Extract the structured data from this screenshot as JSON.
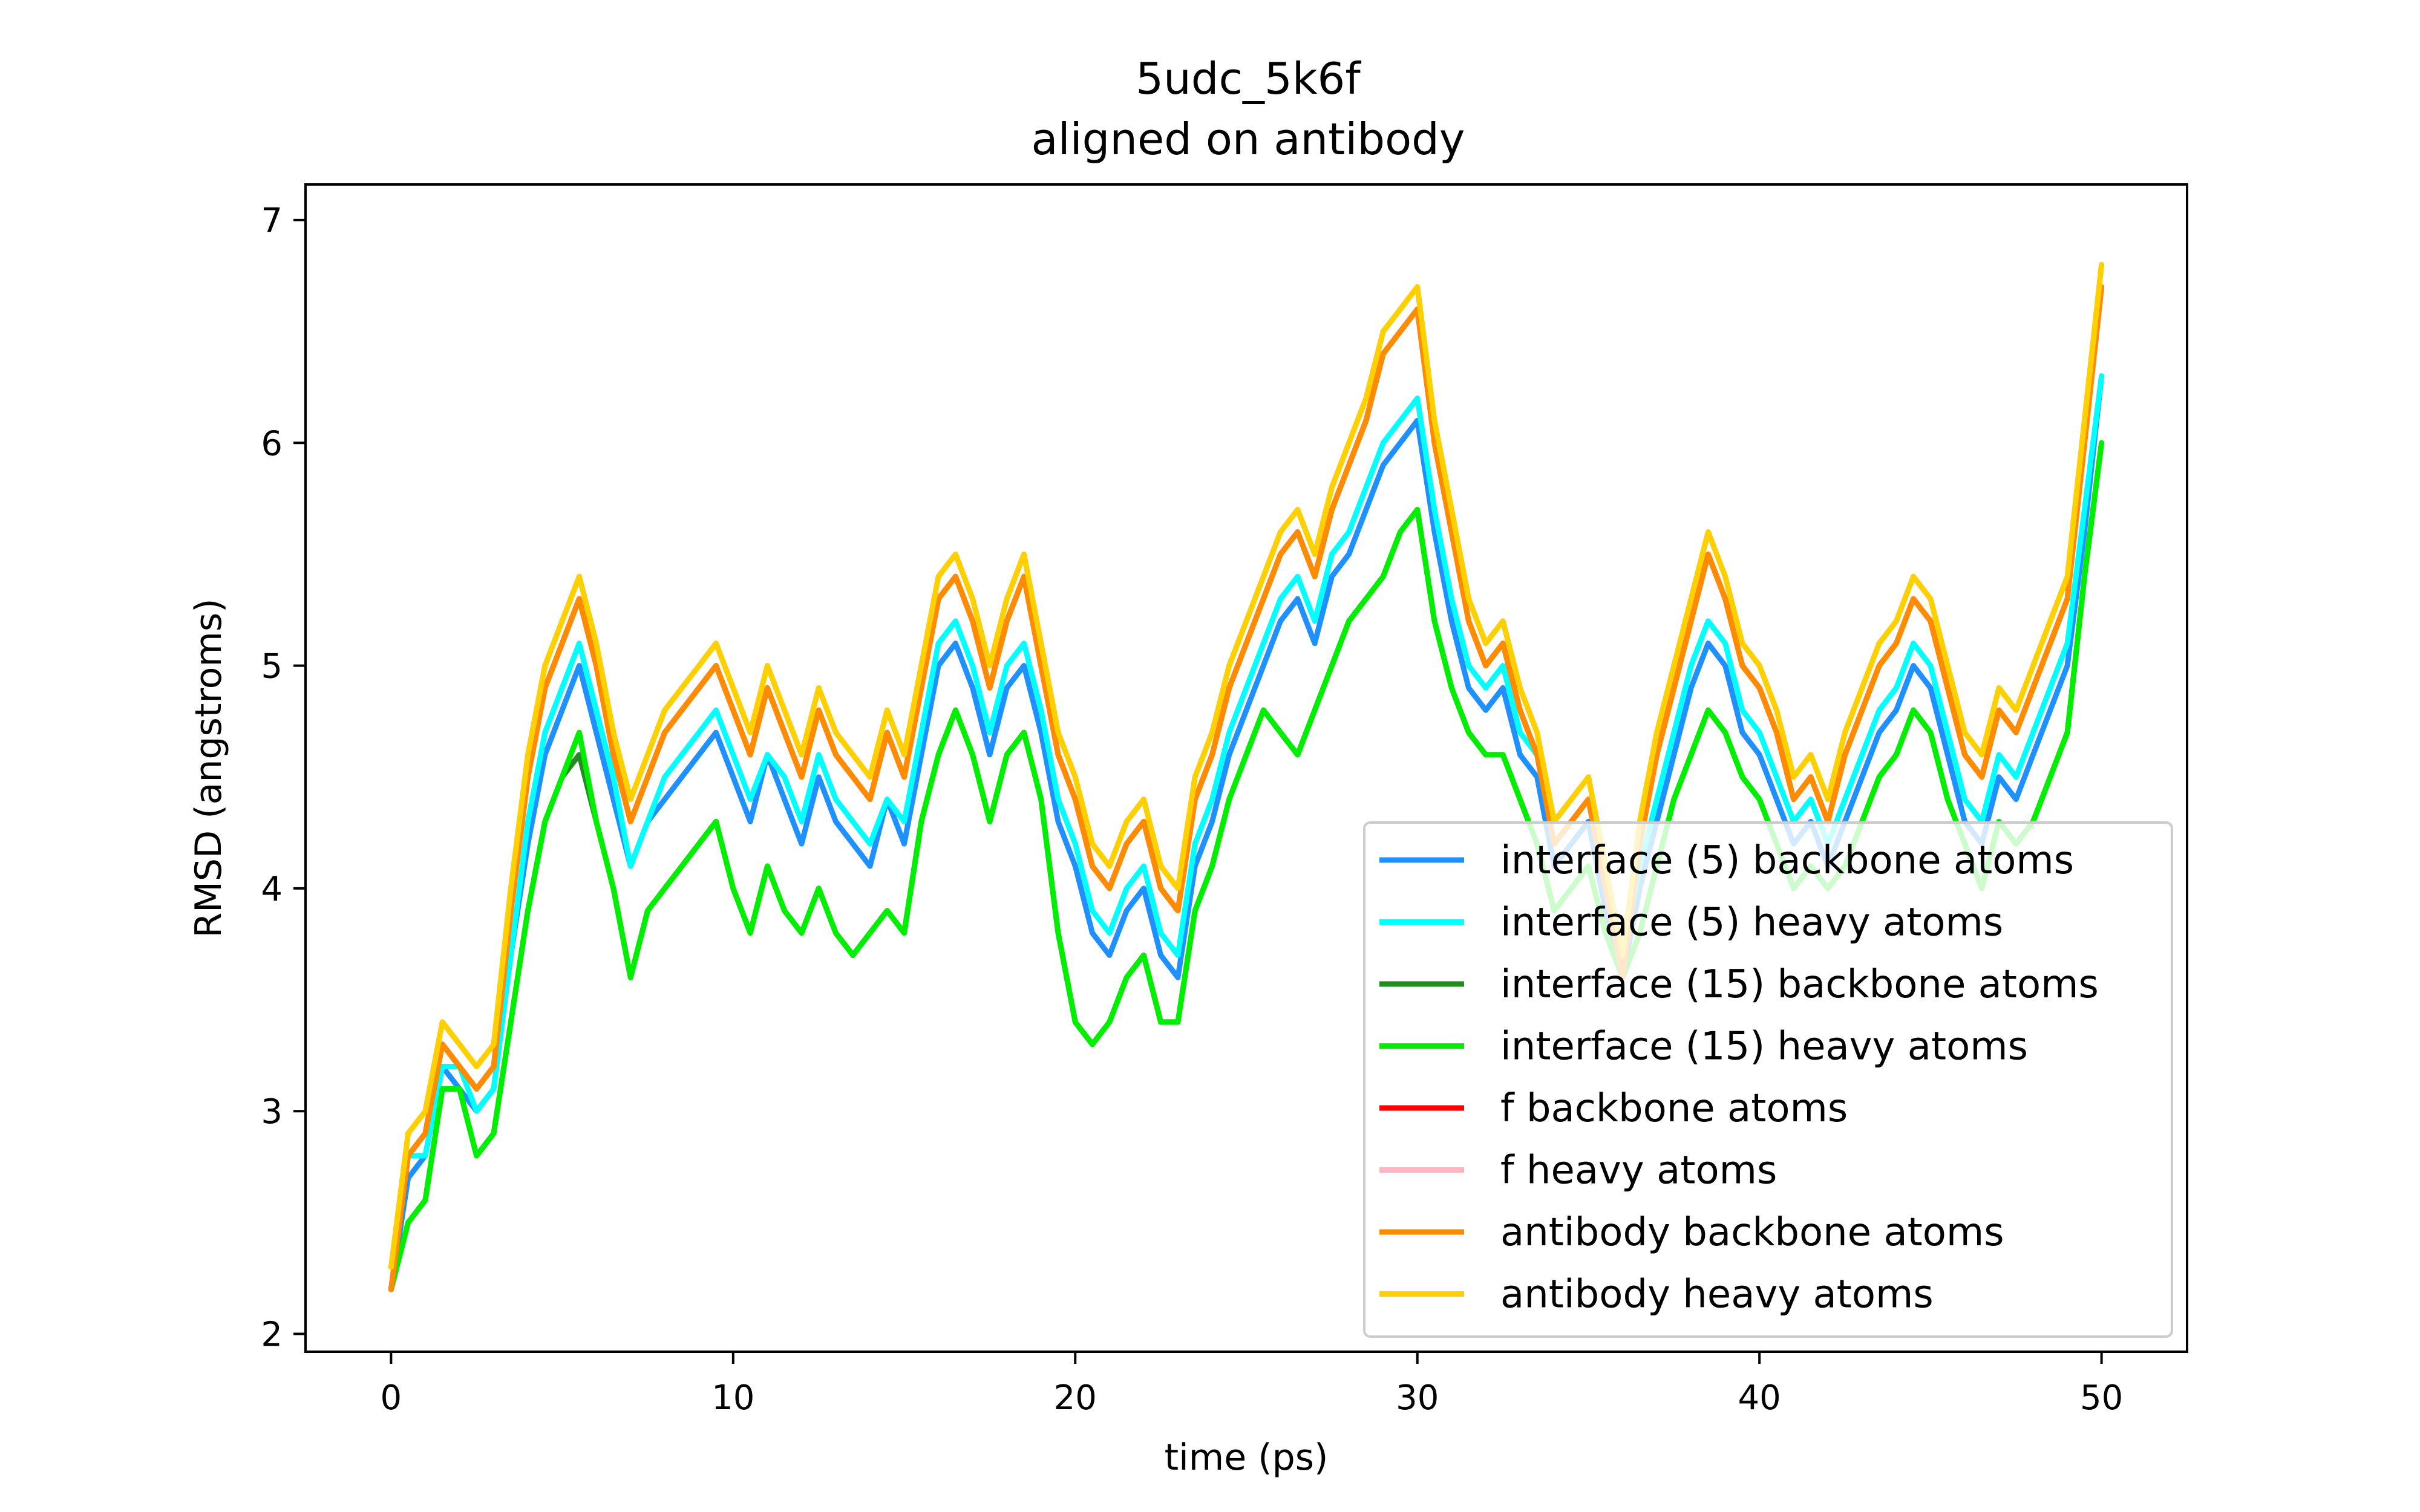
{
  "chart_data": {
    "type": "line",
    "title": "5udc_5k6f",
    "subtitle": "aligned on antibody",
    "xlabel": "time (ps)",
    "ylabel": "RMSD (angstroms)",
    "xlim": [
      -2.5,
      52.5
    ],
    "ylim": [
      1.92,
      7.16
    ],
    "xticks": [
      0,
      10,
      20,
      30,
      40,
      50
    ],
    "yticks": [
      2,
      3,
      4,
      5,
      6,
      7
    ],
    "grid": false,
    "legend_position": "lower right",
    "x": [
      0,
      0.5,
      1,
      1.5,
      2,
      2.5,
      3,
      3.5,
      4,
      4.5,
      5,
      5.5,
      6,
      6.5,
      7,
      7.5,
      8,
      8.5,
      9,
      9.5,
      10,
      10.5,
      11,
      11.5,
      12,
      12.5,
      13,
      13.5,
      14,
      14.5,
      15,
      15.5,
      16,
      16.5,
      17,
      17.5,
      18,
      18.5,
      19,
      19.5,
      20,
      20.5,
      21,
      21.5,
      22,
      22.5,
      23,
      23.5,
      24,
      24.5,
      25,
      25.5,
      26,
      26.5,
      27,
      27.5,
      28,
      28.5,
      29,
      29.5,
      30,
      30.5,
      31,
      31.5,
      32,
      32.5,
      33,
      33.5,
      34,
      34.5,
      35,
      35.5,
      36,
      36.5,
      37,
      37.5,
      38,
      38.5,
      39,
      39.5,
      40,
      40.5,
      41,
      41.5,
      42,
      42.5,
      43,
      43.5,
      44,
      44.5,
      45,
      45.5,
      46,
      46.5,
      47,
      47.5,
      48,
      48.5,
      49,
      49.5,
      50
    ],
    "series": [
      {
        "name": "interface (5) backbone atoms",
        "color": "#1e90ff",
        "values": [
          2.2,
          2.7,
          2.8,
          3.2,
          3.1,
          3.0,
          3.1,
          3.7,
          4.2,
          4.6,
          4.8,
          5.0,
          4.7,
          4.4,
          4.1,
          4.3,
          4.4,
          4.5,
          4.6,
          4.7,
          4.5,
          4.3,
          4.6,
          4.4,
          4.2,
          4.5,
          4.3,
          4.2,
          4.1,
          4.4,
          4.2,
          4.6,
          5.0,
          5.1,
          4.9,
          4.6,
          4.9,
          5.0,
          4.7,
          4.3,
          4.1,
          3.8,
          3.7,
          3.9,
          4.0,
          3.7,
          3.6,
          4.1,
          4.3,
          4.6,
          4.8,
          5.0,
          5.2,
          5.3,
          5.1,
          5.4,
          5.5,
          5.7,
          5.9,
          6.0,
          6.1,
          5.6,
          5.2,
          4.9,
          4.8,
          4.9,
          4.6,
          4.5,
          4.1,
          4.2,
          4.3,
          3.9,
          3.6,
          4.0,
          4.3,
          4.6,
          4.9,
          5.1,
          5.0,
          4.7,
          4.6,
          4.4,
          4.2,
          4.3,
          4.1,
          4.3,
          4.5,
          4.7,
          4.8,
          5.0,
          4.9,
          4.6,
          4.3,
          4.2,
          4.5,
          4.4,
          4.6,
          4.8,
          5.0,
          5.6,
          6.3
        ]
      },
      {
        "name": "interface (5) heavy atoms",
        "color": "#00ffff",
        "values": [
          2.3,
          2.8,
          2.8,
          3.2,
          3.2,
          3.0,
          3.1,
          3.7,
          4.3,
          4.7,
          4.9,
          5.1,
          4.8,
          4.5,
          4.1,
          4.3,
          4.5,
          4.6,
          4.7,
          4.8,
          4.6,
          4.4,
          4.6,
          4.5,
          4.3,
          4.6,
          4.4,
          4.3,
          4.2,
          4.4,
          4.3,
          4.7,
          5.1,
          5.2,
          5.0,
          4.7,
          5.0,
          5.1,
          4.8,
          4.4,
          4.2,
          3.9,
          3.8,
          4.0,
          4.1,
          3.8,
          3.7,
          4.2,
          4.4,
          4.7,
          4.9,
          5.1,
          5.3,
          5.4,
          5.2,
          5.5,
          5.6,
          5.8,
          6.0,
          6.1,
          6.2,
          5.7,
          5.3,
          5.0,
          4.9,
          5.0,
          4.7,
          4.6,
          4.2,
          4.3,
          4.4,
          4.0,
          3.7,
          4.1,
          4.4,
          4.7,
          5.0,
          5.2,
          5.1,
          4.8,
          4.7,
          4.5,
          4.3,
          4.4,
          4.2,
          4.4,
          4.6,
          4.8,
          4.9,
          5.1,
          5.0,
          4.7,
          4.4,
          4.3,
          4.6,
          4.5,
          4.7,
          4.9,
          5.1,
          5.7,
          6.3
        ]
      },
      {
        "name": "interface (15) backbone atoms",
        "color": "#228b22",
        "values": [
          2.2,
          2.5,
          2.6,
          3.1,
          3.1,
          2.8,
          2.9,
          3.4,
          3.9,
          4.3,
          4.5,
          4.6,
          4.3,
          4.0,
          3.6,
          3.9,
          4.0,
          4.1,
          4.2,
          4.3,
          4.0,
          3.8,
          4.1,
          3.9,
          3.8,
          4.0,
          3.8,
          3.7,
          3.8,
          3.9,
          3.8,
          4.3,
          4.6,
          4.8,
          4.6,
          4.3,
          4.6,
          4.7,
          4.4,
          3.8,
          3.4,
          3.3,
          3.4,
          3.6,
          3.7,
          3.4,
          3.4,
          3.9,
          4.1,
          4.4,
          4.6,
          4.8,
          4.7,
          4.6,
          4.8,
          5.0,
          5.2,
          5.3,
          5.4,
          5.6,
          5.7,
          5.2,
          4.9,
          4.7,
          4.6,
          4.6,
          4.4,
          4.2,
          3.9,
          4.0,
          4.1,
          3.8,
          3.6,
          3.8,
          4.1,
          4.4,
          4.6,
          4.8,
          4.7,
          4.5,
          4.4,
          4.2,
          4.0,
          4.1,
          4.0,
          4.1,
          4.3,
          4.5,
          4.6,
          4.8,
          4.7,
          4.4,
          4.2,
          4.0,
          4.3,
          4.2,
          4.3,
          4.5,
          4.7,
          5.4,
          6.0
        ]
      },
      {
        "name": "interface (15) heavy atoms",
        "color": "#00ee00",
        "values": [
          2.2,
          2.5,
          2.6,
          3.1,
          3.1,
          2.8,
          2.9,
          3.4,
          3.9,
          4.3,
          4.5,
          4.7,
          4.3,
          4.0,
          3.6,
          3.9,
          4.0,
          4.1,
          4.2,
          4.3,
          4.0,
          3.8,
          4.1,
          3.9,
          3.8,
          4.0,
          3.8,
          3.7,
          3.8,
          3.9,
          3.8,
          4.3,
          4.6,
          4.8,
          4.6,
          4.3,
          4.6,
          4.7,
          4.4,
          3.8,
          3.4,
          3.3,
          3.4,
          3.6,
          3.7,
          3.4,
          3.4,
          3.9,
          4.1,
          4.4,
          4.6,
          4.8,
          4.7,
          4.6,
          4.8,
          5.0,
          5.2,
          5.3,
          5.4,
          5.6,
          5.7,
          5.2,
          4.9,
          4.7,
          4.6,
          4.6,
          4.4,
          4.2,
          3.9,
          4.0,
          4.1,
          3.8,
          3.6,
          3.8,
          4.1,
          4.4,
          4.6,
          4.8,
          4.7,
          4.5,
          4.4,
          4.2,
          4.0,
          4.1,
          4.0,
          4.1,
          4.3,
          4.5,
          4.6,
          4.8,
          4.7,
          4.4,
          4.2,
          4.0,
          4.3,
          4.2,
          4.3,
          4.5,
          4.7,
          5.4,
          6.0
        ]
      },
      {
        "name": "f backbone atoms",
        "color": "#ff0000",
        "values": [
          2.2,
          2.8,
          2.9,
          3.3,
          3.2,
          3.1,
          3.2,
          3.9,
          4.5,
          4.9,
          5.1,
          5.3,
          5.0,
          4.6,
          4.3,
          4.5,
          4.7,
          4.8,
          4.9,
          5.0,
          4.8,
          4.6,
          4.9,
          4.7,
          4.5,
          4.8,
          4.6,
          4.5,
          4.4,
          4.7,
          4.5,
          4.9,
          5.3,
          5.4,
          5.2,
          4.9,
          5.2,
          5.4,
          5.0,
          4.6,
          4.4,
          4.1,
          4.0,
          4.2,
          4.3,
          4.0,
          3.9,
          4.4,
          4.6,
          4.9,
          5.1,
          5.3,
          5.5,
          5.6,
          5.4,
          5.7,
          5.9,
          6.1,
          6.4,
          6.5,
          6.6,
          6.0,
          5.6,
          5.2,
          5.0,
          5.1,
          4.8,
          4.6,
          4.2,
          4.3,
          4.4,
          4.0,
          3.6,
          4.2,
          4.6,
          4.9,
          5.2,
          5.5,
          5.3,
          5.0,
          4.9,
          4.7,
          4.4,
          4.5,
          4.3,
          4.6,
          4.8,
          5.0,
          5.1,
          5.3,
          5.2,
          4.9,
          4.6,
          4.5,
          4.8,
          4.7,
          4.9,
          5.1,
          5.3,
          6.0,
          6.7
        ]
      },
      {
        "name": "f heavy atoms",
        "color": "#ffb6c1",
        "values": [
          2.3,
          2.9,
          3.0,
          3.4,
          3.3,
          3.2,
          3.3,
          4.0,
          4.6,
          5.0,
          5.2,
          5.4,
          5.1,
          4.7,
          4.4,
          4.6,
          4.8,
          4.9,
          5.0,
          5.1,
          4.9,
          4.7,
          5.0,
          4.8,
          4.6,
          4.9,
          4.7,
          4.6,
          4.5,
          4.8,
          4.6,
          5.0,
          5.4,
          5.5,
          5.3,
          5.0,
          5.3,
          5.5,
          5.1,
          4.7,
          4.5,
          4.2,
          4.1,
          4.3,
          4.4,
          4.1,
          4.0,
          4.5,
          4.7,
          5.0,
          5.2,
          5.4,
          5.6,
          5.7,
          5.5,
          5.8,
          6.0,
          6.2,
          6.5,
          6.6,
          6.7,
          6.1,
          5.7,
          5.3,
          5.1,
          5.2,
          4.9,
          4.7,
          4.3,
          4.4,
          4.5,
          4.1,
          3.7,
          4.3,
          4.7,
          5.0,
          5.3,
          5.6,
          5.4,
          5.1,
          5.0,
          4.8,
          4.5,
          4.6,
          4.4,
          4.7,
          4.9,
          5.1,
          5.2,
          5.4,
          5.3,
          5.0,
          4.7,
          4.6,
          4.9,
          4.8,
          5.0,
          5.2,
          5.4,
          6.1,
          6.8
        ]
      },
      {
        "name": "antibody backbone atoms",
        "color": "#ff8c00",
        "values": [
          2.2,
          2.8,
          2.9,
          3.3,
          3.2,
          3.1,
          3.2,
          3.9,
          4.5,
          4.9,
          5.1,
          5.3,
          5.0,
          4.6,
          4.3,
          4.5,
          4.7,
          4.8,
          4.9,
          5.0,
          4.8,
          4.6,
          4.9,
          4.7,
          4.5,
          4.8,
          4.6,
          4.5,
          4.4,
          4.7,
          4.5,
          4.9,
          5.3,
          5.4,
          5.2,
          4.9,
          5.2,
          5.4,
          5.0,
          4.6,
          4.4,
          4.1,
          4.0,
          4.2,
          4.3,
          4.0,
          3.9,
          4.4,
          4.6,
          4.9,
          5.1,
          5.3,
          5.5,
          5.6,
          5.4,
          5.7,
          5.9,
          6.1,
          6.4,
          6.5,
          6.6,
          6.0,
          5.6,
          5.2,
          5.0,
          5.1,
          4.8,
          4.6,
          4.2,
          4.3,
          4.4,
          4.0,
          3.6,
          4.2,
          4.6,
          4.9,
          5.2,
          5.5,
          5.3,
          5.0,
          4.9,
          4.7,
          4.4,
          4.5,
          4.3,
          4.6,
          4.8,
          5.0,
          5.1,
          5.3,
          5.2,
          4.9,
          4.6,
          4.5,
          4.8,
          4.7,
          4.9,
          5.1,
          5.3,
          6.0,
          6.7
        ]
      },
      {
        "name": "antibody heavy atoms",
        "color": "#ffd000",
        "values": [
          2.3,
          2.9,
          3.0,
          3.4,
          3.3,
          3.2,
          3.3,
          4.0,
          4.6,
          5.0,
          5.2,
          5.4,
          5.1,
          4.7,
          4.4,
          4.6,
          4.8,
          4.9,
          5.0,
          5.1,
          4.9,
          4.7,
          5.0,
          4.8,
          4.6,
          4.9,
          4.7,
          4.6,
          4.5,
          4.8,
          4.6,
          5.0,
          5.4,
          5.5,
          5.3,
          5.0,
          5.3,
          5.5,
          5.1,
          4.7,
          4.5,
          4.2,
          4.1,
          4.3,
          4.4,
          4.1,
          4.0,
          4.5,
          4.7,
          5.0,
          5.2,
          5.4,
          5.6,
          5.7,
          5.5,
          5.8,
          6.0,
          6.2,
          6.5,
          6.6,
          6.7,
          6.1,
          5.7,
          5.3,
          5.1,
          5.2,
          4.9,
          4.7,
          4.3,
          4.4,
          4.5,
          4.1,
          3.7,
          4.3,
          4.7,
          5.0,
          5.3,
          5.6,
          5.4,
          5.1,
          5.0,
          4.8,
          4.5,
          4.6,
          4.4,
          4.7,
          4.9,
          5.1,
          5.2,
          5.4,
          5.3,
          5.0,
          4.7,
          4.6,
          4.9,
          4.8,
          5.0,
          5.2,
          5.4,
          6.1,
          6.8
        ]
      }
    ]
  }
}
